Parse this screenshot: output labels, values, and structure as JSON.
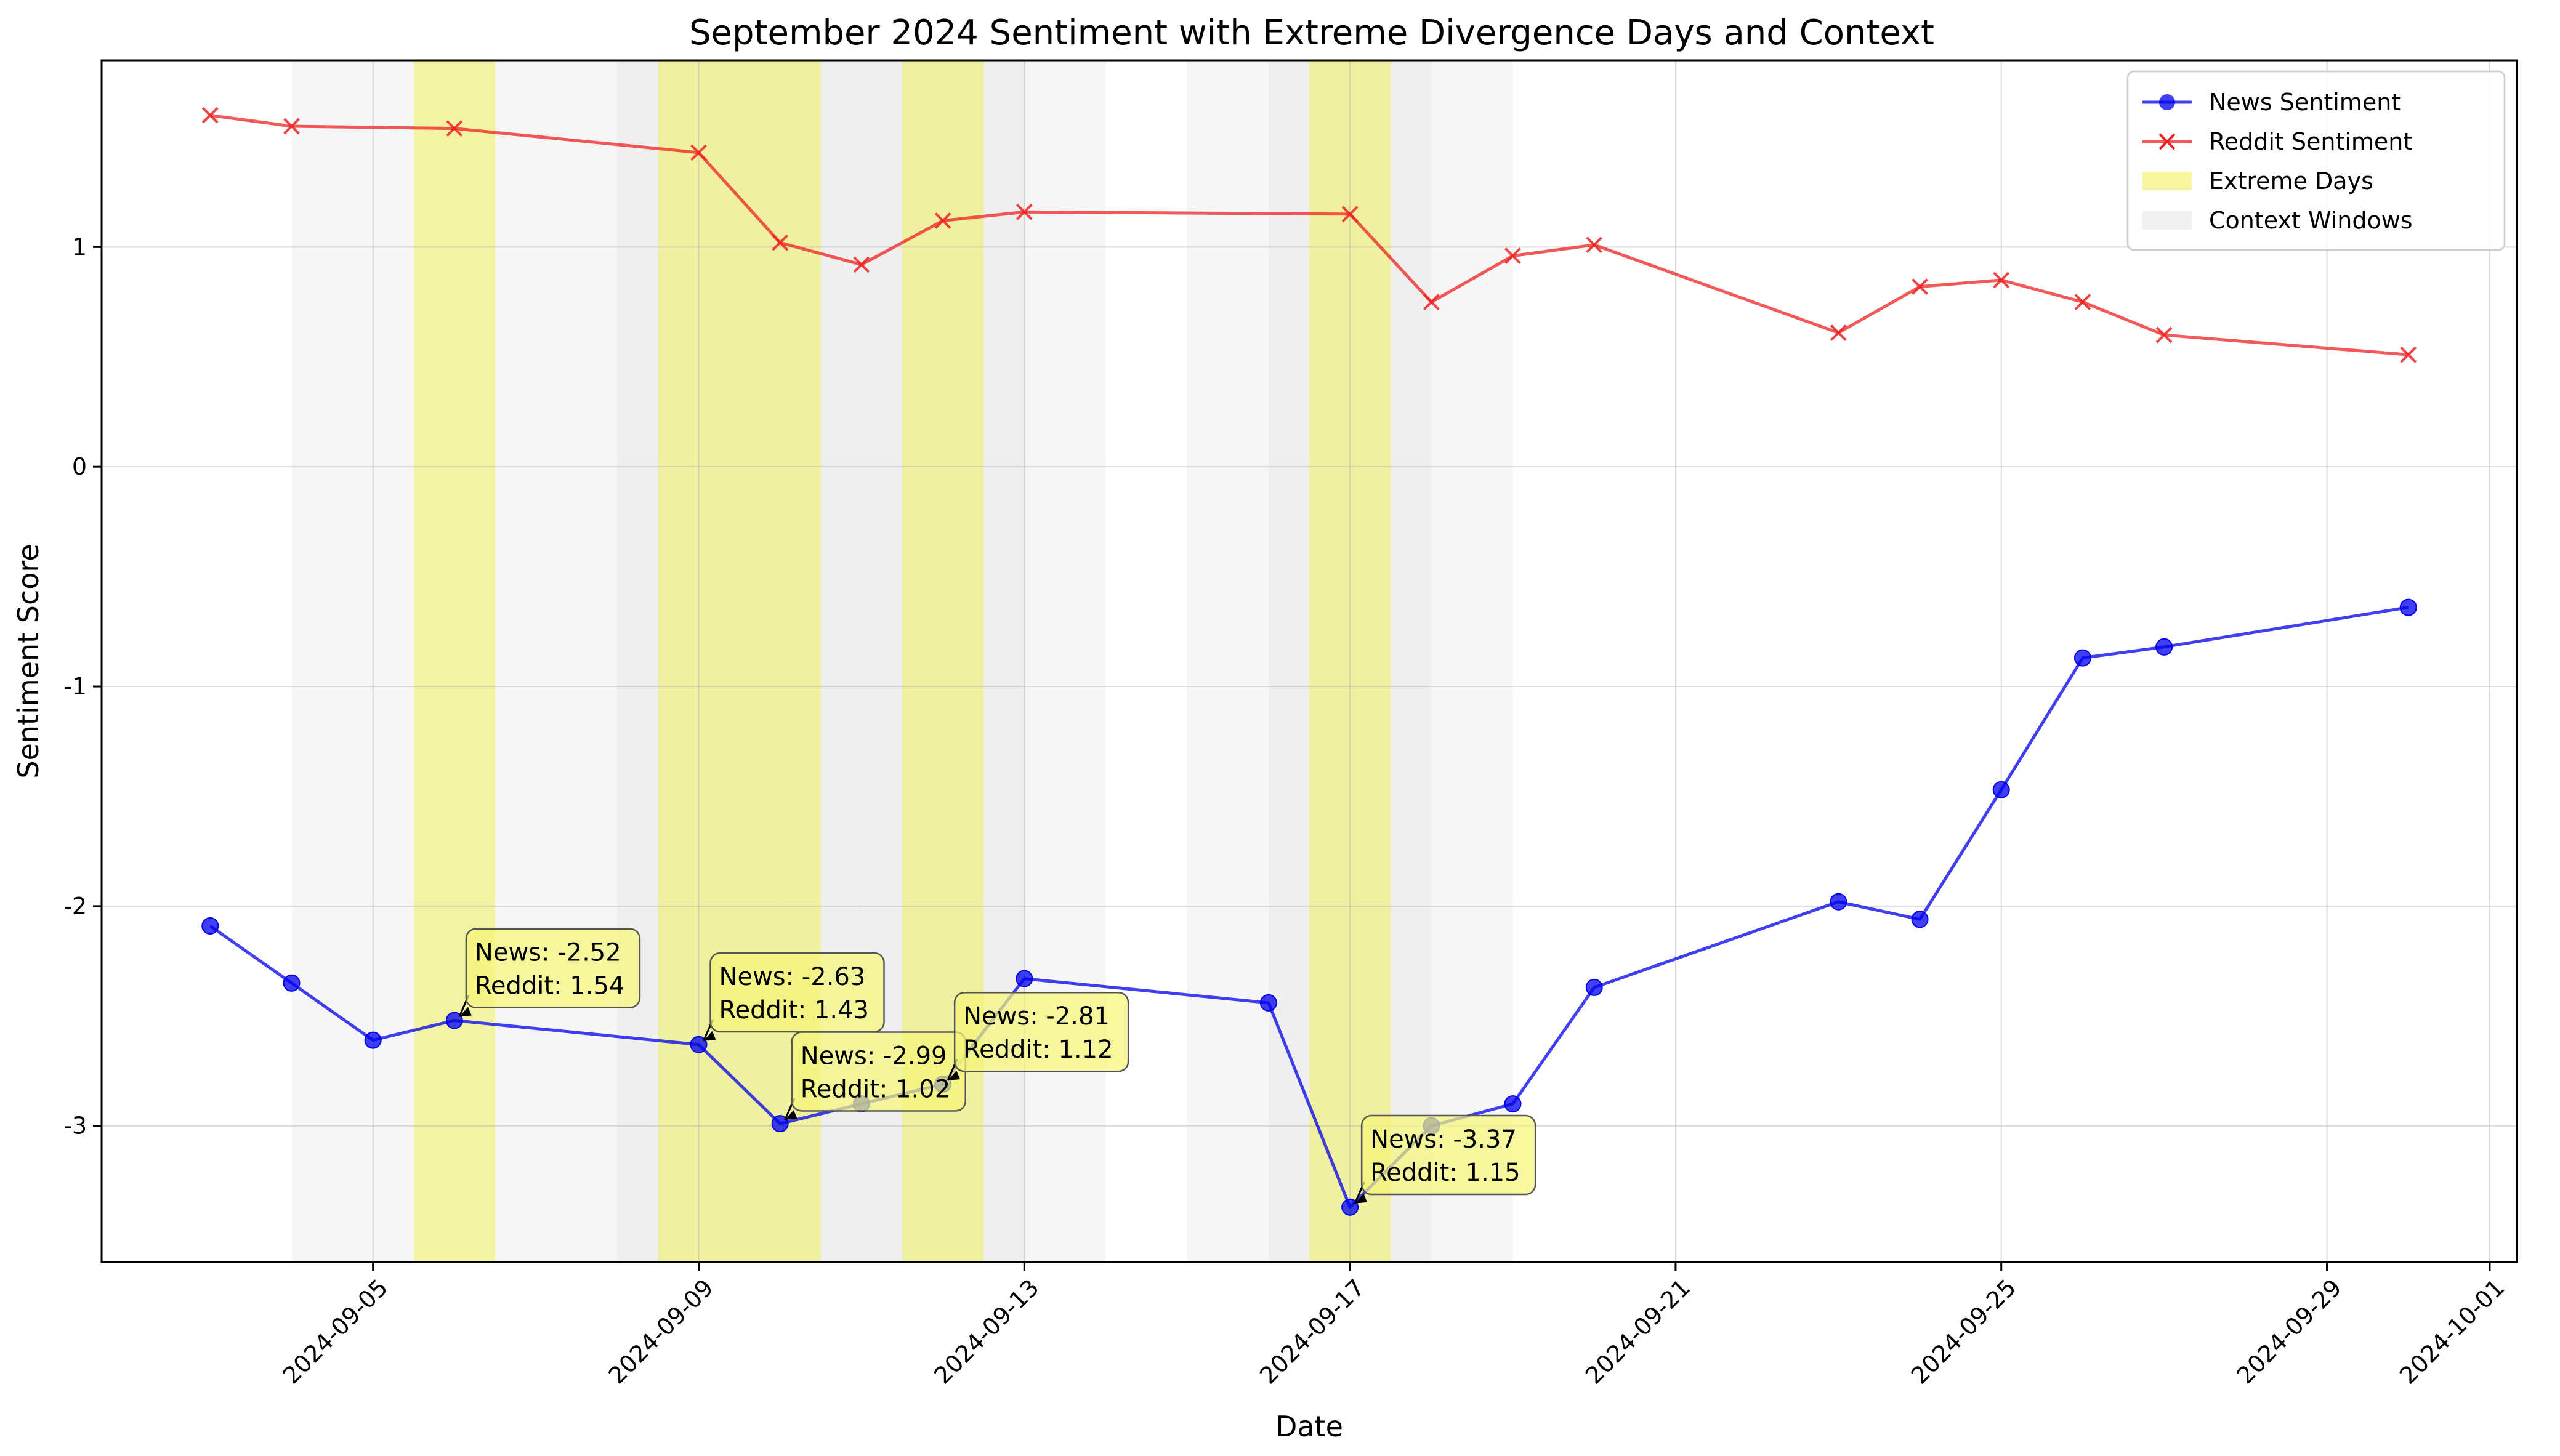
{
  "chart_data": {
    "type": "line",
    "title": "September 2024 Sentiment with Extreme Divergence Days and Context",
    "xlabel": "Date",
    "ylabel": "Sentiment Score",
    "xlim": [
      "2024-09-01T16:00",
      "2024-10-01T08:00"
    ],
    "ylim": [
      -3.62,
      1.85
    ],
    "x_ticks": [
      "2024-09-05",
      "2024-09-09",
      "2024-09-13",
      "2024-09-17",
      "2024-09-21",
      "2024-09-25",
      "2024-09-29",
      "2024-10-01"
    ],
    "y_ticks": [
      {
        "value": 1,
        "label": "1"
      },
      {
        "value": 0,
        "label": "0"
      },
      {
        "value": -1,
        "label": "-1"
      },
      {
        "value": -2,
        "label": "-2"
      },
      {
        "value": -3,
        "label": "-3"
      }
    ],
    "grid": true,
    "legend_position": "top-right",
    "colors": {
      "news": "#0000ee",
      "reddit": "#ee2222",
      "extreme": "#f0f060",
      "context": "#d8d8d8",
      "annotation_box": "#f5f57a"
    },
    "series": [
      {
        "name": "News Sentiment",
        "marker": "circle",
        "points": [
          {
            "x": "2024-09-03",
            "y": -2.09
          },
          {
            "x": "2024-09-04",
            "y": -2.35
          },
          {
            "x": "2024-09-05",
            "y": -2.61
          },
          {
            "x": "2024-09-06",
            "y": -2.52
          },
          {
            "x": "2024-09-09",
            "y": -2.63
          },
          {
            "x": "2024-09-10",
            "y": -2.99
          },
          {
            "x": "2024-09-11",
            "y": -2.9
          },
          {
            "x": "2024-09-12",
            "y": -2.81
          },
          {
            "x": "2024-09-13",
            "y": -2.33
          },
          {
            "x": "2024-09-16",
            "y": -2.44
          },
          {
            "x": "2024-09-17",
            "y": -3.37
          },
          {
            "x": "2024-09-18",
            "y": -3.0
          },
          {
            "x": "2024-09-19",
            "y": -2.9
          },
          {
            "x": "2024-09-20",
            "y": -2.37
          },
          {
            "x": "2024-09-23",
            "y": -1.98
          },
          {
            "x": "2024-09-24",
            "y": -2.06
          },
          {
            "x": "2024-09-25",
            "y": -1.47
          },
          {
            "x": "2024-09-26",
            "y": -0.87
          },
          {
            "x": "2024-09-27",
            "y": -0.82
          },
          {
            "x": "2024-09-30",
            "y": -0.64
          }
        ]
      },
      {
        "name": "Reddit Sentiment",
        "marker": "x",
        "points": [
          {
            "x": "2024-09-03",
            "y": 1.6
          },
          {
            "x": "2024-09-04",
            "y": 1.55
          },
          {
            "x": "2024-09-06",
            "y": 1.54
          },
          {
            "x": "2024-09-09",
            "y": 1.43
          },
          {
            "x": "2024-09-10",
            "y": 1.02
          },
          {
            "x": "2024-09-11",
            "y": 0.92
          },
          {
            "x": "2024-09-12",
            "y": 1.12
          },
          {
            "x": "2024-09-13",
            "y": 1.16
          },
          {
            "x": "2024-09-17",
            "y": 1.15
          },
          {
            "x": "2024-09-18",
            "y": 0.75
          },
          {
            "x": "2024-09-19",
            "y": 0.96
          },
          {
            "x": "2024-09-20",
            "y": 1.01
          },
          {
            "x": "2024-09-23",
            "y": 0.61
          },
          {
            "x": "2024-09-24",
            "y": 0.82
          },
          {
            "x": "2024-09-25",
            "y": 0.85
          },
          {
            "x": "2024-09-26",
            "y": 0.75
          },
          {
            "x": "2024-09-27",
            "y": 0.6
          },
          {
            "x": "2024-09-30",
            "y": 0.51
          }
        ]
      }
    ],
    "extreme_days": [
      {
        "start": "2024-09-05T12:00",
        "end": "2024-09-06T12:00"
      },
      {
        "start": "2024-09-08T12:00",
        "end": "2024-09-09T12:00"
      },
      {
        "start": "2024-09-09T12:00",
        "end": "2024-09-10T12:00"
      },
      {
        "start": "2024-09-11T12:00",
        "end": "2024-09-12T12:00"
      },
      {
        "start": "2024-09-16T12:00",
        "end": "2024-09-17T12:00"
      }
    ],
    "context_windows": [
      {
        "start": "2024-09-04T00:00",
        "end": "2024-09-07T00:00"
      },
      {
        "start": "2024-09-07T00:00",
        "end": "2024-09-10T00:00"
      },
      {
        "start": "2024-09-08T00:00",
        "end": "2024-09-11T00:00"
      },
      {
        "start": "2024-09-10T00:00",
        "end": "2024-09-13T00:00"
      },
      {
        "start": "2024-09-11T00:00",
        "end": "2024-09-14T00:00"
      },
      {
        "start": "2024-09-15T00:00",
        "end": "2024-09-18T00:00"
      },
      {
        "start": "2024-09-16T00:00",
        "end": "2024-09-19T00:00"
      }
    ],
    "legend": {
      "entries": [
        {
          "label": "News Sentiment",
          "kind": "line-circle"
        },
        {
          "label": "Reddit Sentiment",
          "kind": "line-x"
        },
        {
          "label": "Extreme Days",
          "kind": "patch-extreme"
        },
        {
          "label": "Context Windows",
          "kind": "patch-context"
        }
      ]
    },
    "annotations": [
      {
        "x": "2024-09-06",
        "y": -2.52,
        "line1": "News: -2.52",
        "line2": "Reddit: 1.54",
        "tx": "2024-09-06T06:00",
        "ty": -2.12
      },
      {
        "x": "2024-09-09",
        "y": -2.63,
        "line1": "News: -2.63",
        "line2": "Reddit: 1.43",
        "tx": "2024-09-09T06:00",
        "ty": -2.23
      },
      {
        "x": "2024-09-10",
        "y": -2.99,
        "line1": "News: -2.99",
        "line2": "Reddit: 1.02",
        "tx": "2024-09-10T06:00",
        "ty": -2.59
      },
      {
        "x": "2024-09-12",
        "y": -2.81,
        "line1": "News: -2.81",
        "line2": "Reddit: 1.12",
        "tx": "2024-09-12T06:00",
        "ty": -2.41
      },
      {
        "x": "2024-09-17",
        "y": -3.37,
        "line1": "News: -3.37",
        "line2": "Reddit: 1.15",
        "tx": "2024-09-17T06:00",
        "ty": -2.97
      }
    ]
  }
}
